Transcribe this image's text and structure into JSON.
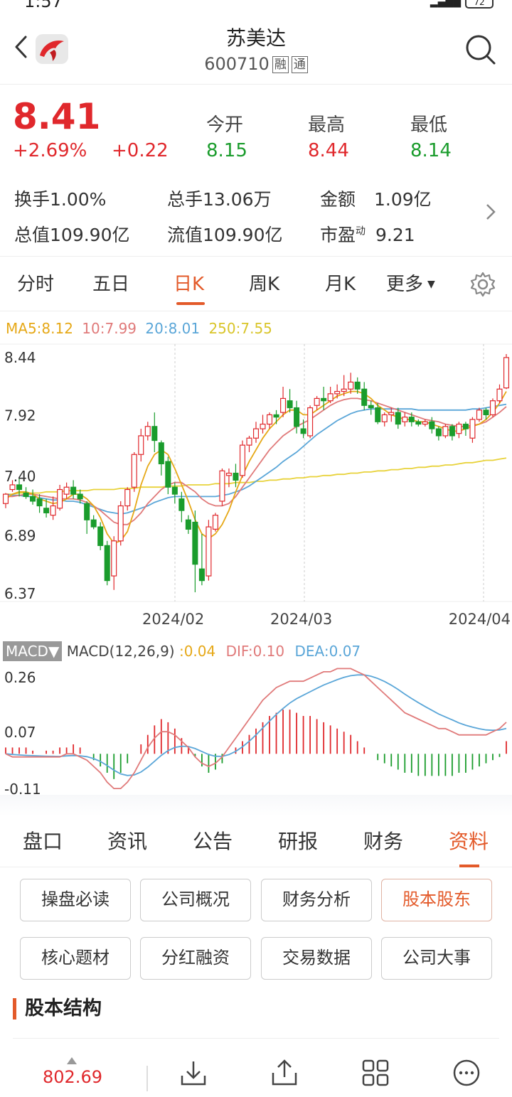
{
  "status": {
    "time": "1:57",
    "battery": "72"
  },
  "header": {
    "title": "苏美达",
    "code": "600710",
    "tags": [
      "融",
      "通"
    ]
  },
  "quote": {
    "price": "8.41",
    "pct": "+2.69%",
    "change": "+0.22",
    "open_label": "今开",
    "open": "8.15",
    "high_label": "最高",
    "high": "8.44",
    "low_label": "最低",
    "low": "8.14",
    "stats": [
      {
        "label": "换手",
        "value": "1.00%"
      },
      {
        "label": "总手",
        "value": "13.06万"
      },
      {
        "label": "金额",
        "value": "1.09亿"
      },
      {
        "label": "总值",
        "value": "109.90亿"
      },
      {
        "label": "流值",
        "value": "109.90亿"
      },
      {
        "label": "市盈",
        "sup": "动",
        "value": "9.21"
      }
    ]
  },
  "tabs": [
    "分时",
    "五日",
    "日K",
    "周K",
    "月K",
    "更多"
  ],
  "ma_legend": {
    "ma5": "MA5:8.12",
    "ma10": "10:7.99",
    "ma20": "20:8.01",
    "ma250": "250:7.55"
  },
  "colors": {
    "up": "#e0282c",
    "down": "#1a9c2c",
    "accent": "#e35a2a",
    "ma5": "#e6a817",
    "ma10": "#e07a7a",
    "ma20": "#5aa6d8",
    "ma250": "#e8d23a"
  },
  "chart_data": [
    {
      "type": "candlestick",
      "y_ticks": [
        "8.44",
        "7.92",
        "7.40",
        "6.89",
        "6.37"
      ],
      "ylim": [
        6.37,
        8.44
      ],
      "x_ticks": [
        "2024/02",
        "2024/03",
        "2024/04"
      ],
      "candles": [
        [
          7.16,
          7.24,
          7.12,
          7.25
        ],
        [
          7.28,
          7.32,
          7.26,
          7.36
        ],
        [
          7.32,
          7.28,
          7.22,
          7.38
        ],
        [
          7.25,
          7.22,
          7.2,
          7.3
        ],
        [
          7.22,
          7.18,
          7.15,
          7.28
        ],
        [
          7.2,
          7.14,
          7.08,
          7.24
        ],
        [
          7.12,
          7.08,
          7.04,
          7.2
        ],
        [
          7.06,
          7.14,
          7.02,
          7.22
        ],
        [
          7.12,
          7.28,
          7.1,
          7.32
        ],
        [
          7.24,
          7.3,
          7.2,
          7.34
        ],
        [
          7.3,
          7.24,
          7.2,
          7.36
        ],
        [
          7.24,
          7.2,
          7.16,
          7.28
        ],
        [
          7.16,
          7.02,
          6.9,
          7.18
        ],
        [
          7.02,
          6.96,
          6.94,
          7.06
        ],
        [
          6.96,
          6.8,
          6.76,
          7.0
        ],
        [
          6.8,
          6.5,
          6.46,
          6.84
        ],
        [
          6.54,
          6.84,
          6.42,
          6.88
        ],
        [
          6.84,
          7.14,
          6.8,
          7.18
        ],
        [
          7.14,
          7.28,
          7.1,
          7.3
        ],
        [
          7.3,
          7.58,
          7.26,
          7.6
        ],
        [
          7.58,
          7.74,
          7.52,
          7.8
        ],
        [
          7.74,
          7.82,
          7.7,
          7.86
        ],
        [
          7.82,
          7.7,
          7.6,
          7.94
        ],
        [
          7.68,
          7.5,
          7.4,
          7.7
        ],
        [
          7.52,
          7.3,
          7.24,
          7.56
        ],
        [
          7.3,
          7.24,
          7.16,
          7.34
        ],
        [
          7.2,
          7.1,
          7.0,
          7.26
        ],
        [
          7.02,
          6.94,
          6.9,
          7.06
        ],
        [
          7.0,
          6.64,
          6.4,
          7.1
        ],
        [
          6.6,
          6.5,
          6.46,
          6.9
        ],
        [
          6.54,
          6.96,
          6.5,
          7.02
        ],
        [
          6.94,
          7.06,
          6.92,
          7.08
        ],
        [
          7.18,
          7.44,
          7.14,
          7.46
        ],
        [
          7.4,
          7.42,
          7.3,
          7.46
        ],
        [
          7.42,
          7.36,
          7.3,
          7.5
        ],
        [
          7.4,
          7.66,
          7.38,
          7.7
        ],
        [
          7.66,
          7.72,
          7.6,
          7.74
        ],
        [
          7.72,
          7.8,
          7.68,
          7.86
        ],
        [
          7.8,
          7.84,
          7.76,
          7.92
        ],
        [
          7.84,
          7.92,
          7.8,
          7.94
        ],
        [
          7.92,
          7.9,
          7.84,
          7.96
        ],
        [
          7.94,
          8.06,
          7.9,
          8.16
        ],
        [
          8.04,
          7.98,
          7.94,
          8.14
        ],
        [
          7.98,
          7.82,
          7.76,
          8.04
        ],
        [
          7.8,
          7.76,
          7.72,
          7.88
        ],
        [
          7.74,
          7.98,
          7.72,
          8.0
        ],
        [
          8.0,
          8.06,
          7.96,
          8.08
        ],
        [
          8.06,
          8.04,
          7.96,
          8.16
        ],
        [
          8.04,
          8.1,
          8.02,
          8.16
        ],
        [
          8.1,
          8.12,
          8.06,
          8.18
        ],
        [
          8.12,
          8.14,
          8.08,
          8.26
        ],
        [
          8.14,
          8.2,
          8.1,
          8.28
        ],
        [
          8.2,
          8.14,
          8.1,
          8.24
        ],
        [
          8.14,
          8.0,
          7.96,
          8.2
        ],
        [
          8.0,
          7.98,
          7.92,
          8.04
        ],
        [
          7.98,
          7.86,
          7.84,
          8.02
        ],
        [
          7.86,
          7.92,
          7.82,
          7.94
        ],
        [
          7.92,
          7.94,
          7.86,
          7.98
        ],
        [
          7.94,
          7.84,
          7.8,
          7.98
        ],
        [
          7.86,
          7.9,
          7.82,
          7.94
        ],
        [
          7.9,
          7.86,
          7.82,
          7.94
        ],
        [
          7.86,
          7.84,
          7.82,
          7.88
        ],
        [
          7.84,
          7.86,
          7.82,
          7.88
        ],
        [
          7.86,
          7.8,
          7.76,
          7.9
        ],
        [
          7.8,
          7.74,
          7.7,
          7.82
        ],
        [
          7.74,
          7.82,
          7.72,
          7.84
        ],
        [
          7.82,
          7.74,
          7.7,
          7.84
        ],
        [
          7.76,
          7.84,
          7.72,
          7.86
        ],
        [
          7.84,
          7.8,
          7.74,
          7.86
        ],
        [
          7.72,
          7.88,
          7.68,
          7.9
        ],
        [
          7.88,
          7.96,
          7.86,
          7.98
        ],
        [
          7.96,
          7.92,
          7.88,
          7.98
        ],
        [
          7.92,
          8.04,
          7.9,
          8.06
        ],
        [
          8.04,
          8.14,
          8.02,
          8.18
        ],
        [
          8.15,
          8.41,
          8.14,
          8.44
        ]
      ],
      "ma5": [
        7.2,
        7.24,
        7.26,
        7.26,
        7.24,
        7.2,
        7.18,
        7.16,
        7.17,
        7.2,
        7.24,
        7.24,
        7.2,
        7.14,
        7.04,
        6.9,
        6.82,
        6.84,
        6.92,
        7.1,
        7.32,
        7.48,
        7.58,
        7.62,
        7.58,
        7.46,
        7.32,
        7.18,
        7.02,
        6.9,
        6.86,
        6.9,
        6.98,
        7.1,
        7.26,
        7.4,
        7.52,
        7.62,
        7.72,
        7.8,
        7.86,
        7.92,
        7.96,
        7.96,
        7.92,
        7.92,
        7.96,
        8.0,
        8.04,
        8.08,
        8.1,
        8.12,
        8.12,
        8.1,
        8.06,
        8.0,
        7.96,
        7.92,
        7.9,
        7.88,
        7.88,
        7.86,
        7.86,
        7.84,
        7.82,
        7.8,
        7.78,
        7.78,
        7.8,
        7.82,
        7.84,
        7.88,
        7.94,
        8.02,
        8.12
      ],
      "ma10": [
        7.22,
        7.22,
        7.23,
        7.24,
        7.24,
        7.23,
        7.22,
        7.21,
        7.2,
        7.2,
        7.2,
        7.19,
        7.17,
        7.14,
        7.1,
        7.05,
        7.0,
        6.98,
        6.98,
        7.02,
        7.08,
        7.16,
        7.22,
        7.28,
        7.32,
        7.34,
        7.34,
        7.3,
        7.26,
        7.2,
        7.16,
        7.14,
        7.14,
        7.16,
        7.22,
        7.3,
        7.38,
        7.46,
        7.54,
        7.62,
        7.68,
        7.74,
        7.78,
        7.82,
        7.85,
        7.88,
        7.92,
        7.96,
        8.0,
        8.03,
        8.05,
        8.06,
        8.06,
        8.05,
        8.04,
        8.02,
        8.0,
        7.98,
        7.96,
        7.94,
        7.92,
        7.9,
        7.88,
        7.87,
        7.86,
        7.84,
        7.83,
        7.82,
        7.82,
        7.83,
        7.84,
        7.86,
        7.9,
        7.94,
        7.99
      ],
      "ma20": [
        7.24,
        7.23,
        7.23,
        7.22,
        7.22,
        7.21,
        7.2,
        7.19,
        7.19,
        7.18,
        7.18,
        7.17,
        7.15,
        7.13,
        7.11,
        7.09,
        7.08,
        7.07,
        7.08,
        7.1,
        7.12,
        7.14,
        7.17,
        7.19,
        7.21,
        7.22,
        7.22,
        7.22,
        7.22,
        7.22,
        7.22,
        7.22,
        7.23,
        7.24,
        7.26,
        7.28,
        7.31,
        7.35,
        7.39,
        7.43,
        7.47,
        7.52,
        7.56,
        7.6,
        7.65,
        7.7,
        7.75,
        7.79,
        7.83,
        7.87,
        7.9,
        7.93,
        7.95,
        7.96,
        7.97,
        7.97,
        7.97,
        7.97,
        7.97,
        7.97,
        7.97,
        7.96,
        7.96,
        7.96,
        7.96,
        7.96,
        7.96,
        7.96,
        7.96,
        7.97,
        7.97,
        7.98,
        7.99,
        8.0,
        8.01
      ],
      "ma250": [
        7.24,
        7.24,
        7.25,
        7.25,
        7.25,
        7.25,
        7.26,
        7.26,
        7.26,
        7.27,
        7.27,
        7.27,
        7.27,
        7.28,
        7.28,
        7.28,
        7.28,
        7.29,
        7.29,
        7.29,
        7.3,
        7.3,
        7.3,
        7.3,
        7.31,
        7.31,
        7.31,
        7.32,
        7.32,
        7.32,
        7.32,
        7.33,
        7.33,
        7.33,
        7.34,
        7.34,
        7.34,
        7.35,
        7.35,
        7.36,
        7.36,
        7.37,
        7.37,
        7.38,
        7.38,
        7.39,
        7.39,
        7.4,
        7.4,
        7.41,
        7.41,
        7.42,
        7.42,
        7.43,
        7.43,
        7.44,
        7.44,
        7.45,
        7.45,
        7.46,
        7.46,
        7.47,
        7.47,
        7.48,
        7.48,
        7.49,
        7.49,
        7.5,
        7.51,
        7.51,
        7.52,
        7.53,
        7.53,
        7.54,
        7.55
      ]
    },
    {
      "type": "macd",
      "legend": {
        "button": "MACD▼",
        "params": "MACD(12,26,9) ",
        "macd": ":0.04",
        "dif": "DIF:0.10",
        "dea": "DEA:0.07"
      },
      "y_ticks": [
        "0.26",
        "0.07",
        "-0.11"
      ],
      "ylim": [
        -0.13,
        0.28
      ],
      "macd": [
        0.02,
        0.02,
        0.02,
        0.02,
        0.01,
        0.0,
        0.01,
        0.01,
        0.02,
        0.02,
        0.03,
        0.02,
        0.0,
        -0.02,
        -0.04,
        -0.06,
        -0.08,
        -0.06,
        -0.03,
        0.0,
        0.03,
        0.06,
        0.09,
        0.11,
        0.1,
        0.08,
        0.05,
        0.02,
        -0.01,
        -0.04,
        -0.06,
        -0.05,
        -0.03,
        0.0,
        0.02,
        0.04,
        0.06,
        0.08,
        0.1,
        0.12,
        0.13,
        0.14,
        0.14,
        0.13,
        0.12,
        0.12,
        0.11,
        0.1,
        0.09,
        0.08,
        0.07,
        0.06,
        0.04,
        0.02,
        0.0,
        -0.02,
        -0.03,
        -0.04,
        -0.05,
        -0.06,
        -0.06,
        -0.07,
        -0.07,
        -0.07,
        -0.07,
        -0.07,
        -0.07,
        -0.06,
        -0.06,
        -0.05,
        -0.04,
        -0.03,
        -0.02,
        -0.01,
        0.04
      ],
      "dif": [
        0.0,
        -0.01,
        -0.01,
        -0.01,
        -0.01,
        -0.01,
        -0.01,
        -0.01,
        -0.01,
        0.0,
        0.0,
        -0.01,
        -0.02,
        -0.04,
        -0.06,
        -0.09,
        -0.11,
        -0.11,
        -0.09,
        -0.06,
        -0.02,
        0.02,
        0.05,
        0.07,
        0.07,
        0.06,
        0.04,
        0.02,
        -0.01,
        -0.03,
        -0.04,
        -0.03,
        -0.01,
        0.02,
        0.05,
        0.08,
        0.11,
        0.14,
        0.17,
        0.19,
        0.21,
        0.22,
        0.23,
        0.23,
        0.23,
        0.24,
        0.25,
        0.26,
        0.26,
        0.27,
        0.27,
        0.27,
        0.26,
        0.25,
        0.23,
        0.21,
        0.19,
        0.17,
        0.15,
        0.13,
        0.12,
        0.11,
        0.1,
        0.09,
        0.08,
        0.08,
        0.07,
        0.06,
        0.06,
        0.06,
        0.06,
        0.06,
        0.07,
        0.08,
        0.1
      ]
    }
  ],
  "macd_legend": {
    "button": "MACD▼",
    "params": "MACD(12,26,9) ",
    "macd": ":0.04",
    "dif": "DIF:0.10",
    "dea": "DEA:0.07"
  },
  "bottom_tabs": [
    "盘口",
    "资讯",
    "公告",
    "研报",
    "财务",
    "资料"
  ],
  "grid_buttons": [
    "操盘必读",
    "公司概况",
    "财务分析",
    "股本股东",
    "核心题材",
    "分红融资",
    "交易数据",
    "公司大事"
  ],
  "section_title": "股本结构",
  "bottom_bar": {
    "index_value": "802.69"
  }
}
